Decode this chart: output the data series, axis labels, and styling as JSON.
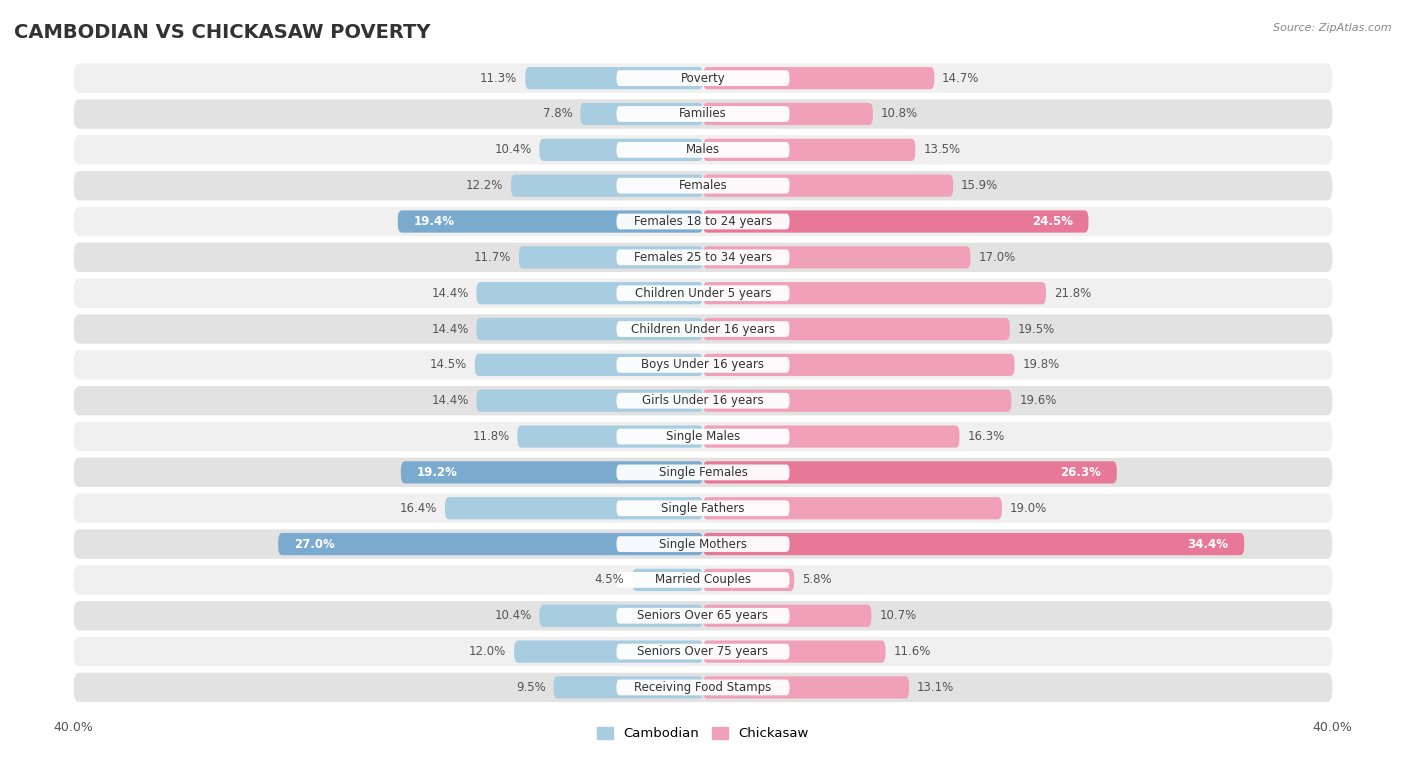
{
  "title": "CAMBODIAN VS CHICKASAW POVERTY",
  "source": "Source: ZipAtlas.com",
  "categories": [
    "Poverty",
    "Families",
    "Males",
    "Females",
    "Females 18 to 24 years",
    "Females 25 to 34 years",
    "Children Under 5 years",
    "Children Under 16 years",
    "Boys Under 16 years",
    "Girls Under 16 years",
    "Single Males",
    "Single Females",
    "Single Fathers",
    "Single Mothers",
    "Married Couples",
    "Seniors Over 65 years",
    "Seniors Over 75 years",
    "Receiving Food Stamps"
  ],
  "cambodian": [
    11.3,
    7.8,
    10.4,
    12.2,
    19.4,
    11.7,
    14.4,
    14.4,
    14.5,
    14.4,
    11.8,
    19.2,
    16.4,
    27.0,
    4.5,
    10.4,
    12.0,
    9.5
  ],
  "chickasaw": [
    14.7,
    10.8,
    13.5,
    15.9,
    24.5,
    17.0,
    21.8,
    19.5,
    19.8,
    19.6,
    16.3,
    26.3,
    19.0,
    34.4,
    5.8,
    10.7,
    11.6,
    13.1
  ],
  "cambodian_color": "#a8cce0",
  "chickasaw_color": "#f0a0b8",
  "highlight_color_cambodian": "#7aabce",
  "highlight_color_chickasaw": "#e87898",
  "label_color_default": "#555555",
  "label_color_highlight": "#ffffff",
  "highlight_indices": [
    4,
    11,
    13
  ],
  "bg_row_light": "#f0f0f0",
  "bg_row_dark": "#e2e2e2",
  "axis_max": 40.0,
  "legend_cambodian": "Cambodian",
  "legend_chickasaw": "Chickasaw",
  "title_fontsize": 14,
  "source_fontsize": 8,
  "label_fontsize": 8.5,
  "cat_fontsize": 8.5
}
